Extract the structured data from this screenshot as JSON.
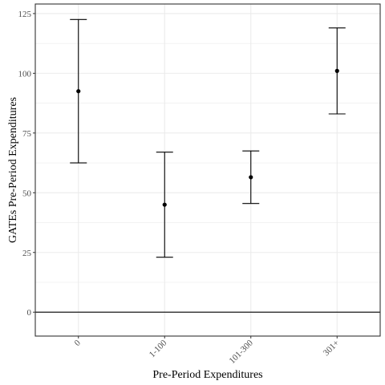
{
  "chart_data": {
    "type": "errorbar",
    "xlabel": "Pre-Period Expenditures",
    "ylabel": "GATEs Pre-Period Expenditures",
    "categories": [
      "0",
      "1-100",
      "101-300",
      "301+"
    ],
    "estimates": [
      92.5,
      45.0,
      56.5,
      101.0
    ],
    "lower": [
      62.5,
      23.0,
      45.5,
      83.0
    ],
    "upper": [
      122.5,
      67.0,
      67.5,
      119.0
    ],
    "ylim": [
      -10,
      129
    ],
    "yticks": [
      0,
      25,
      50,
      75,
      100,
      125
    ],
    "reference_line": 0,
    "grid": true,
    "colors": {
      "line": "#000000",
      "grid": "#ebebeb",
      "border": "#333333",
      "tick_text": "#4d4d4d"
    }
  }
}
